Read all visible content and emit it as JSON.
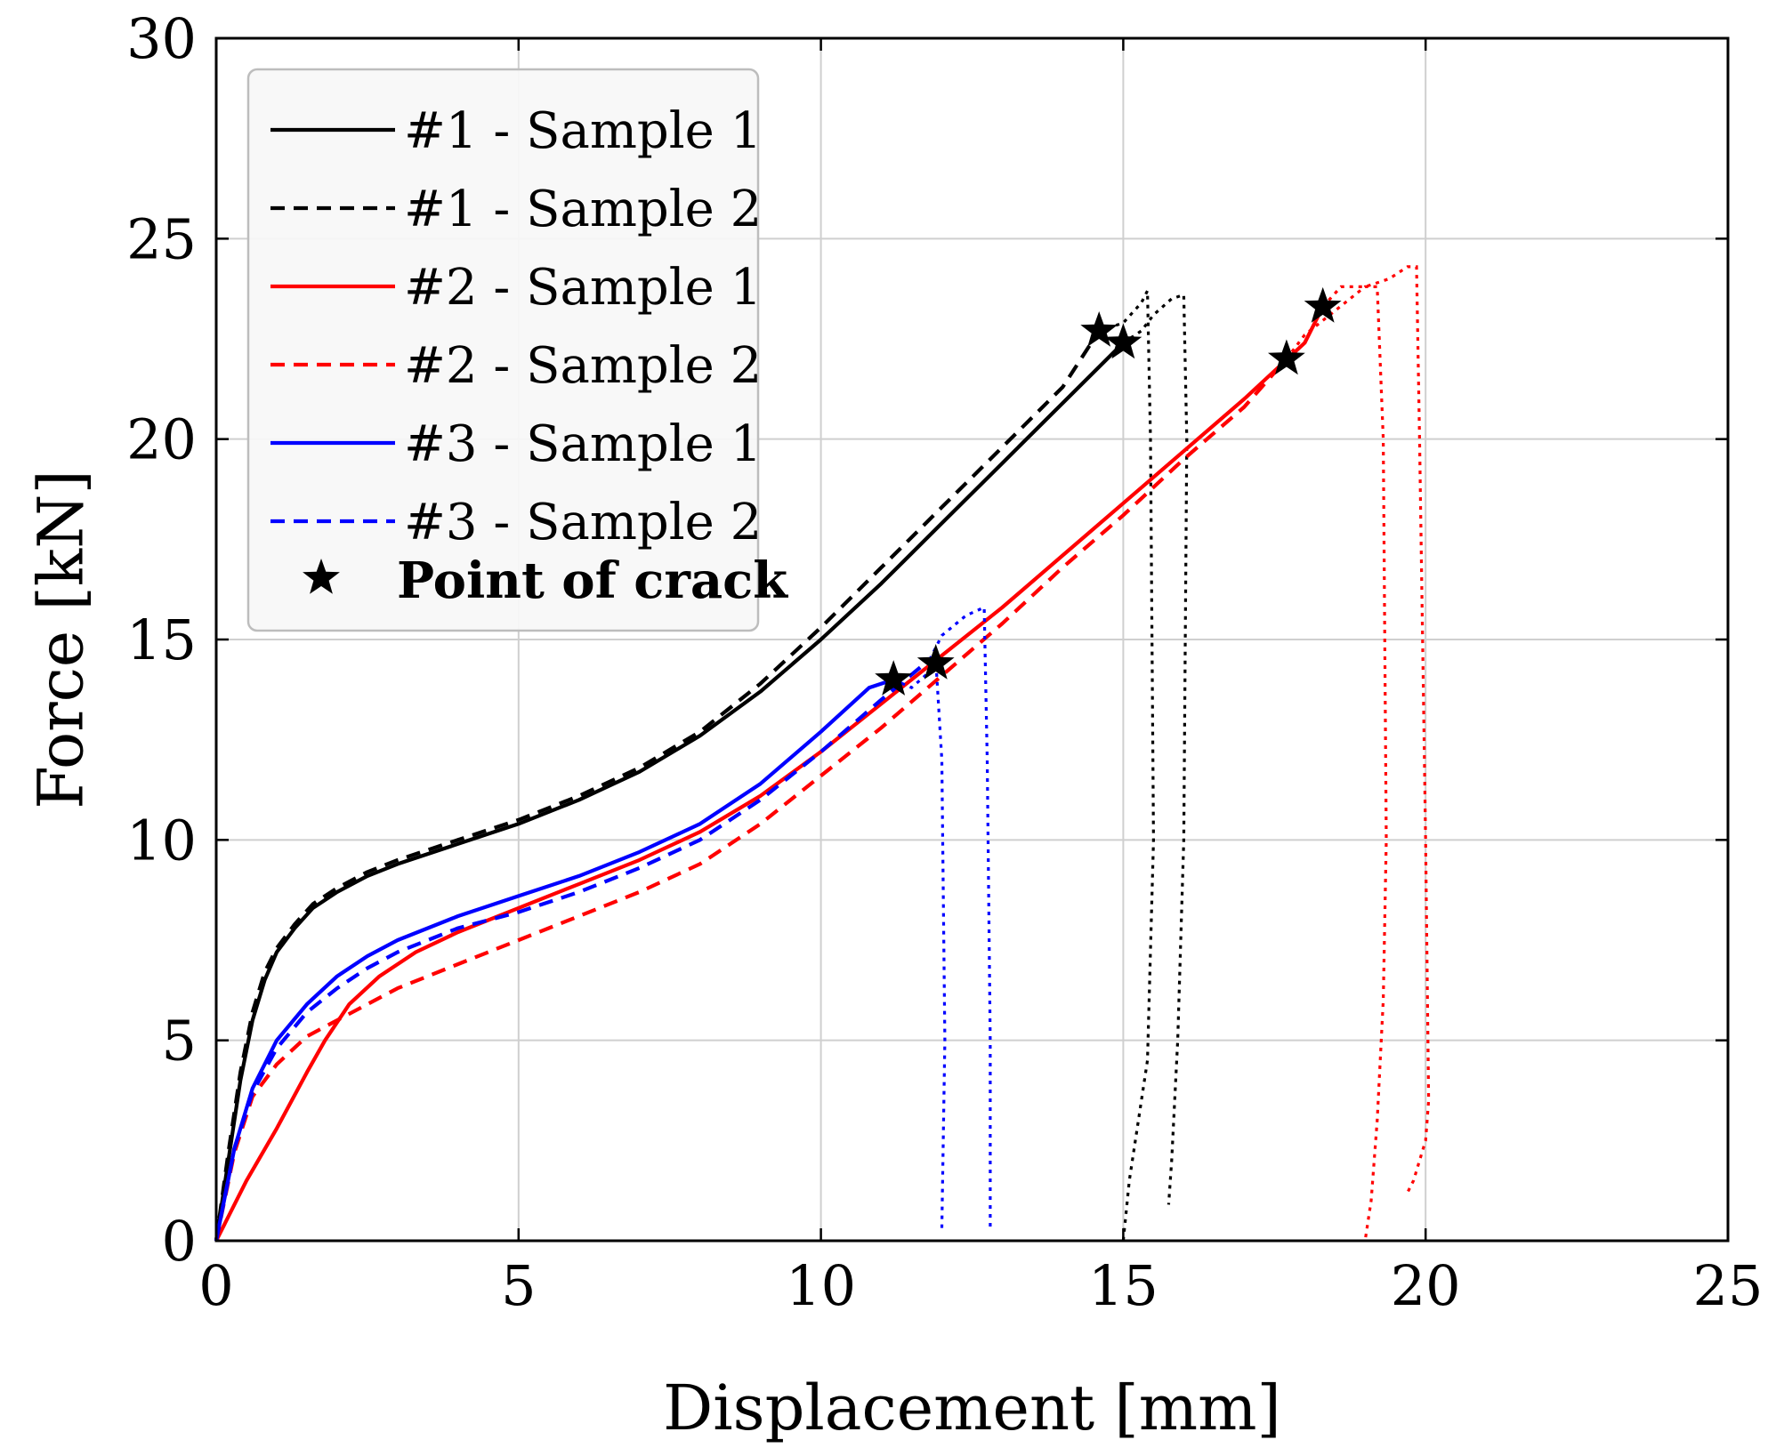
{
  "chart_data": {
    "type": "line",
    "title": "",
    "xlabel": "Displacement [mm]",
    "ylabel": "Force [kN]",
    "xlim": [
      0,
      25
    ],
    "ylim": [
      0,
      30
    ],
    "xticks": [
      "0",
      "5",
      "10",
      "15",
      "20",
      "25"
    ],
    "yticks": [
      "0",
      "5",
      "10",
      "15",
      "20",
      "25",
      "30"
    ],
    "grid": true,
    "legend_position": "top-left",
    "series": [
      {
        "name": "#1 - Sample 1",
        "color": "#000000",
        "style": "solid",
        "x": [
          0,
          0.2,
          0.4,
          0.6,
          0.8,
          1.0,
          1.3,
          1.6,
          2.0,
          2.5,
          3.0,
          4.0,
          5.0,
          6.0,
          7.0,
          8.0,
          9.0,
          10.0,
          11.0,
          12.0,
          13.0,
          14.0,
          15.0
        ],
        "y": [
          0,
          2.0,
          4.0,
          5.5,
          6.5,
          7.2,
          7.8,
          8.3,
          8.7,
          9.1,
          9.4,
          9.9,
          10.4,
          11.0,
          11.7,
          12.6,
          13.7,
          15.0,
          16.4,
          17.9,
          19.4,
          20.9,
          22.4
        ],
        "post_crack": {
          "style": "dotted",
          "x": [
            15.0,
            15.3,
            15.5,
            15.8,
            16.0,
            16.05,
            16.0,
            15.9,
            15.8,
            15.75
          ],
          "y": [
            22.4,
            22.7,
            23.1,
            23.5,
            23.6,
            20.0,
            10.0,
            5.0,
            2.0,
            0.9
          ]
        }
      },
      {
        "name": "#1 - Sample 2",
        "color": "#000000",
        "style": "dashed",
        "x": [
          0,
          0.2,
          0.4,
          0.6,
          0.8,
          1.0,
          1.3,
          1.6,
          2.0,
          2.5,
          3.0,
          4.0,
          5.0,
          6.0,
          7.0,
          8.0,
          9.0,
          10.0,
          11.0,
          12.0,
          13.0,
          14.0,
          14.6
        ],
        "y": [
          0,
          2.2,
          4.2,
          5.7,
          6.7,
          7.3,
          7.9,
          8.4,
          8.8,
          9.2,
          9.5,
          10.0,
          10.5,
          11.1,
          11.8,
          12.7,
          13.9,
          15.3,
          16.8,
          18.3,
          19.8,
          21.3,
          22.7
        ],
        "post_crack": {
          "style": "dotted",
          "x": [
            14.6,
            15.0,
            15.3,
            15.4,
            15.45,
            15.5,
            15.4,
            15.1,
            15.0
          ],
          "y": [
            22.7,
            22.9,
            23.4,
            23.7,
            20.0,
            10.0,
            4.5,
            1.5,
            0
          ]
        }
      },
      {
        "name": "#2 - Sample 1",
        "color": "#ff0000",
        "style": "solid",
        "x": [
          0,
          0.5,
          1.0,
          1.5,
          1.8,
          2.2,
          2.7,
          3.3,
          4.0,
          5.0,
          6.0,
          7.0,
          8.0,
          9.0,
          10.0,
          11.0,
          12.0,
          13.0,
          14.0,
          15.0,
          16.0,
          17.0,
          18.0,
          18.3
        ],
        "y": [
          0,
          1.5,
          2.8,
          4.2,
          5.0,
          5.9,
          6.6,
          7.2,
          7.7,
          8.3,
          8.9,
          9.5,
          10.2,
          11.1,
          12.2,
          13.4,
          14.6,
          15.8,
          17.1,
          18.4,
          19.7,
          21.0,
          22.4,
          23.3
        ],
        "post_crack": {
          "style": "dotted",
          "x": [
            18.3,
            18.6,
            19.0,
            19.4,
            19.7,
            19.85,
            19.9,
            20.0,
            20.05,
            20.0,
            19.8,
            19.7
          ],
          "y": [
            23.3,
            23.8,
            23.8,
            24.0,
            24.3,
            24.3,
            20.0,
            10.0,
            3.5,
            2.5,
            1.5,
            1.2
          ]
        }
      },
      {
        "name": "#2 - Sample 2",
        "color": "#ff0000",
        "style": "dashed",
        "x": [
          0,
          0.3,
          0.6,
          1.0,
          1.5,
          2.0,
          2.5,
          3.0,
          4.0,
          5.0,
          6.0,
          7.0,
          8.0,
          9.0,
          10.0,
          11.0,
          12.0,
          13.0,
          14.0,
          15.0,
          16.0,
          17.0,
          17.7
        ],
        "y": [
          0,
          2.2,
          3.6,
          4.4,
          5.1,
          5.5,
          5.9,
          6.3,
          6.9,
          7.5,
          8.1,
          8.7,
          9.4,
          10.4,
          11.6,
          12.8,
          14.1,
          15.4,
          16.8,
          18.1,
          19.5,
          20.8,
          22.0
        ],
        "post_crack": {
          "style": "dotted",
          "x": [
            17.7,
            18.0,
            18.5,
            19.0,
            19.2,
            19.3,
            19.35,
            19.3,
            19.2,
            19.1,
            19.0
          ],
          "y": [
            22.0,
            22.6,
            23.2,
            23.8,
            23.8,
            20.0,
            10.0,
            6.0,
            3.0,
            1.0,
            0
          ]
        }
      },
      {
        "name": "#3 - Sample 1",
        "color": "#0000ff",
        "style": "solid",
        "x": [
          0,
          0.3,
          0.6,
          1.0,
          1.5,
          2.0,
          2.5,
          3.0,
          4.0,
          5.0,
          6.0,
          7.0,
          8.0,
          9.0,
          10.0,
          10.8,
          11.2
        ],
        "y": [
          0,
          2.3,
          3.8,
          5.0,
          5.9,
          6.6,
          7.1,
          7.5,
          8.1,
          8.6,
          9.1,
          9.7,
          10.4,
          11.4,
          12.7,
          13.8,
          14.0
        ],
        "post_crack": {
          "style": "dotted",
          "x": [
            11.2,
            11.5,
            11.8,
            11.9,
            12.0,
            12.05,
            12.0
          ],
          "y": [
            14.0,
            13.8,
            14.2,
            14.5,
            12.0,
            5.0,
            0.3
          ]
        }
      },
      {
        "name": "#3 - Sample 2",
        "color": "#0000ff",
        "style": "dashed",
        "x": [
          0,
          0.3,
          0.6,
          1.0,
          1.5,
          2.0,
          2.5,
          3.0,
          4.0,
          5.0,
          6.0,
          7.0,
          8.0,
          9.0,
          10.0,
          11.0,
          11.8
        ],
        "y": [
          0,
          2.3,
          3.7,
          4.8,
          5.7,
          6.3,
          6.8,
          7.2,
          7.8,
          8.2,
          8.7,
          9.3,
          10.0,
          11.0,
          12.2,
          13.5,
          14.5
        ],
        "post_crack": {
          "style": "dotted",
          "x": [
            11.8,
            12.0,
            12.4,
            12.7,
            12.75,
            12.8,
            12.8
          ],
          "y": [
            14.5,
            15.1,
            15.6,
            15.8,
            12.0,
            5.0,
            0.3
          ]
        }
      }
    ],
    "crack_points": {
      "name": "Point of crack",
      "color": "#000000",
      "marker": "star",
      "x": [
        14.6,
        15.0,
        11.2,
        11.9,
        17.7,
        18.3
      ],
      "y": [
        22.7,
        22.4,
        14.0,
        14.4,
        22.0,
        23.3
      ]
    }
  }
}
